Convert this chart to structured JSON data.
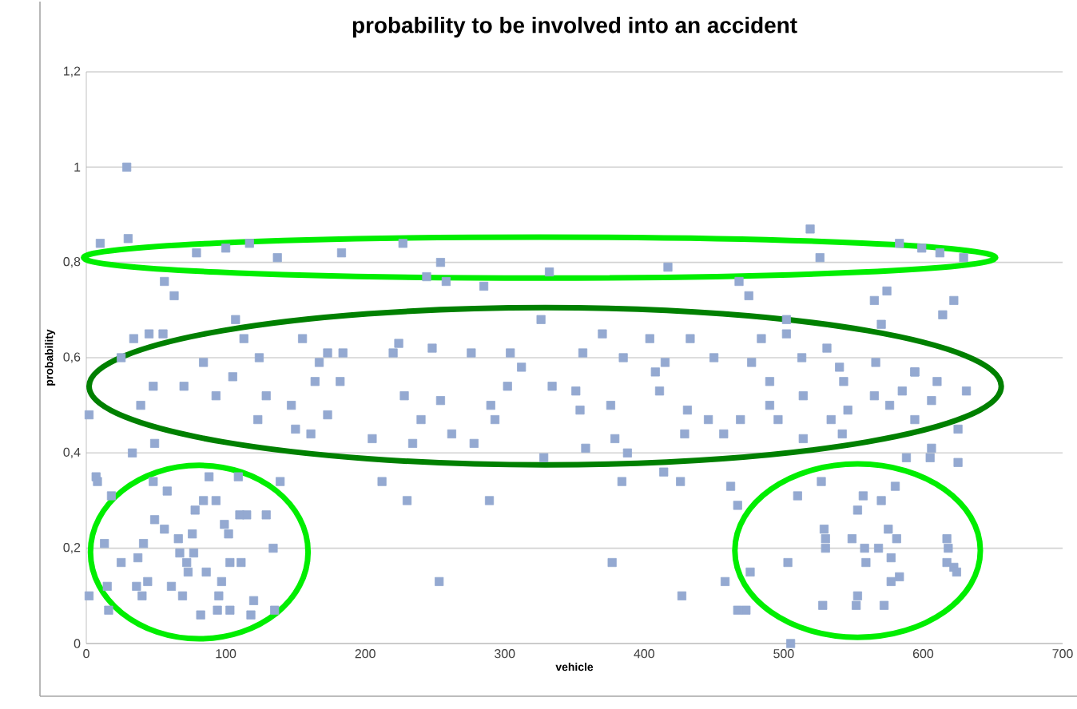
{
  "chart_data": {
    "type": "scatter",
    "title": "probability to be involved into an accident",
    "xlabel": "vehicle",
    "ylabel": "probability",
    "xlim": [
      0,
      700
    ],
    "xticks": [
      0,
      100,
      200,
      300,
      400,
      500,
      600,
      700
    ],
    "ylim": [
      0,
      1.2
    ],
    "yticks": [
      {
        "value": 0,
        "label": "0"
      },
      {
        "value": 0.2,
        "label": "0,2"
      },
      {
        "value": 0.4,
        "label": "0,4"
      },
      {
        "value": 0.6,
        "label": "0,6"
      },
      {
        "value": 0.8,
        "label": "0,8"
      },
      {
        "value": 1,
        "label": "1"
      },
      {
        "value": 1.2,
        "label": "1,2"
      }
    ],
    "grid": "y",
    "marker": "square",
    "color": "#94a9d1",
    "x": [
      29,
      10,
      30,
      79,
      100,
      117,
      137,
      183,
      227,
      254,
      258,
      244,
      56,
      63,
      285,
      332,
      417,
      519,
      526,
      583,
      599,
      612,
      629,
      565,
      574,
      570,
      622,
      614,
      468,
      475,
      34,
      45,
      55,
      107,
      113,
      84,
      124,
      155,
      167,
      173,
      184,
      224,
      220,
      248,
      276,
      304,
      312,
      25,
      2,
      48,
      70,
      39,
      93,
      105,
      123,
      129,
      147,
      150,
      161,
      173,
      205,
      228,
      240,
      234,
      254,
      262,
      278,
      290,
      293,
      302,
      164,
      182,
      33,
      49,
      7,
      8,
      18,
      48,
      58,
      88,
      109,
      139,
      212,
      230,
      289,
      253,
      49,
      56,
      66,
      76,
      78,
      84,
      93,
      99,
      102,
      110,
      115,
      129,
      13,
      41,
      67,
      77,
      25,
      37,
      72,
      73,
      86,
      103,
      111,
      134,
      15,
      36,
      44,
      40,
      61,
      69,
      97,
      95,
      120,
      16,
      82,
      94,
      103,
      118,
      135,
      2,
      377,
      427,
      384,
      414,
      426,
      462,
      467,
      458,
      467,
      473,
      476,
      503,
      505,
      510,
      527,
      529,
      530,
      530,
      528,
      549,
      553,
      557,
      558,
      559,
      553,
      552,
      568,
      570,
      577,
      575,
      581,
      577,
      583,
      572,
      580,
      617,
      618,
      617,
      622,
      624,
      625,
      605,
      588,
      606,
      334,
      351,
      354,
      376,
      379,
      408,
      411,
      429,
      431,
      446,
      457,
      469,
      490,
      496,
      514,
      514,
      534,
      542,
      546,
      565,
      576,
      585,
      594,
      606,
      610,
      625,
      631,
      594,
      543,
      490,
      328,
      358,
      388,
      370,
      404,
      433,
      484,
      502,
      531,
      356,
      385,
      415,
      450,
      477,
      513,
      540,
      566,
      594,
      326,
      502
    ],
    "values": [
      1.0,
      0.84,
      0.85,
      0.82,
      0.83,
      0.84,
      0.81,
      0.82,
      0.84,
      0.8,
      0.76,
      0.77,
      0.76,
      0.73,
      0.75,
      0.78,
      0.79,
      0.87,
      0.81,
      0.84,
      0.83,
      0.82,
      0.81,
      0.72,
      0.74,
      0.67,
      0.72,
      0.69,
      0.76,
      0.73,
      0.64,
      0.65,
      0.65,
      0.68,
      0.64,
      0.59,
      0.6,
      0.64,
      0.59,
      0.61,
      0.61,
      0.63,
      0.61,
      0.62,
      0.61,
      0.61,
      0.58,
      0.6,
      0.48,
      0.54,
      0.54,
      0.5,
      0.52,
      0.56,
      0.47,
      0.52,
      0.5,
      0.45,
      0.44,
      0.48,
      0.43,
      0.52,
      0.47,
      0.42,
      0.51,
      0.44,
      0.42,
      0.5,
      0.47,
      0.54,
      0.55,
      0.55,
      0.4,
      0.42,
      0.35,
      0.34,
      0.31,
      0.34,
      0.32,
      0.35,
      0.35,
      0.34,
      0.34,
      0.3,
      0.3,
      0.13,
      0.26,
      0.24,
      0.22,
      0.23,
      0.28,
      0.3,
      0.3,
      0.25,
      0.23,
      0.27,
      0.27,
      0.27,
      0.21,
      0.21,
      0.19,
      0.19,
      0.17,
      0.18,
      0.17,
      0.15,
      0.15,
      0.17,
      0.17,
      0.2,
      0.12,
      0.12,
      0.13,
      0.1,
      0.12,
      0.1,
      0.13,
      0.1,
      0.09,
      0.07,
      0.06,
      0.07,
      0.07,
      0.06,
      0.07,
      0.1,
      0.17,
      0.1,
      0.34,
      0.36,
      0.34,
      0.33,
      0.29,
      0.13,
      0.07,
      0.07,
      0.15,
      0.17,
      0.0,
      0.31,
      0.34,
      0.24,
      0.22,
      0.2,
      0.08,
      0.22,
      0.28,
      0.31,
      0.2,
      0.17,
      0.1,
      0.08,
      0.2,
      0.3,
      0.18,
      0.24,
      0.22,
      0.13,
      0.14,
      0.08,
      0.33,
      0.22,
      0.2,
      0.17,
      0.16,
      0.15,
      0.38,
      0.39,
      0.39,
      0.41,
      0.54,
      0.53,
      0.49,
      0.5,
      0.43,
      0.57,
      0.53,
      0.44,
      0.49,
      0.47,
      0.44,
      0.47,
      0.5,
      0.47,
      0.52,
      0.43,
      0.47,
      0.44,
      0.49,
      0.52,
      0.5,
      0.53,
      0.47,
      0.51,
      0.55,
      0.45,
      0.53,
      0.57,
      0.55,
      0.55,
      0.39,
      0.41,
      0.4,
      0.65,
      0.64,
      0.64,
      0.64,
      0.65,
      0.62,
      0.61,
      0.6,
      0.59,
      0.6,
      0.59,
      0.6,
      0.58,
      0.59,
      0.57,
      0.68,
      0.68
    ]
  }
}
